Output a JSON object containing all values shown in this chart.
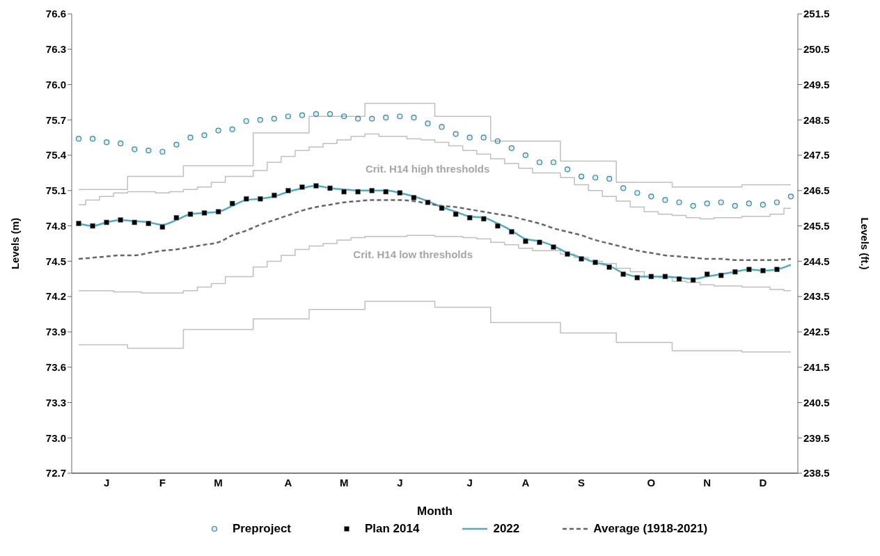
{
  "chart_data": {
    "type": "line",
    "xlabel": "Month",
    "ylabel": "Levels (m)",
    "y2label": "Levels (ft.)",
    "legend": "bottom",
    "categories": [
      null,
      null,
      "J",
      null,
      null,
      null,
      "F",
      null,
      null,
      null,
      "M",
      null,
      null,
      null,
      null,
      "A",
      null,
      null,
      null,
      "M",
      null,
      null,
      null,
      "J",
      null,
      null,
      null,
      null,
      "J",
      null,
      null,
      null,
      "A",
      null,
      null,
      null,
      "S",
      null,
      null,
      null,
      null,
      "O",
      null,
      null,
      null,
      "N",
      null,
      null,
      null,
      "D",
      null,
      null
    ],
    "ylim": [
      72.7,
      76.6
    ],
    "yticks": [
      72.7,
      {
        "value": 73,
        "label": "73.0"
      },
      73.3,
      73.6,
      73.9,
      74.2,
      74.5,
      74.8,
      75.1,
      75.4,
      75.7,
      {
        "value": 76,
        "label": "76.0"
      },
      76.3,
      76.6
    ],
    "y2lim": [
      238.5,
      251.5
    ],
    "y2ticks": [
      238.5,
      239.5,
      240.5,
      241.5,
      242.5,
      243.5,
      244.5,
      245.5,
      246.5,
      247.5,
      248.5,
      249.5,
      250.5,
      251.5
    ],
    "annotations": [
      "Crit. H14 high thresholds",
      "Crit. H14 low thresholds"
    ],
    "series": [
      {
        "type": "step",
        "color": "#bfbfbf",
        "values": [
          75.11,
          75.11,
          75.11,
          75.11,
          75.22,
          75.22,
          75.22,
          75.22,
          75.31,
          75.31,
          75.31,
          75.31,
          75.31,
          75.59,
          75.59,
          75.59,
          75.59,
          75.73,
          75.73,
          75.73,
          75.73,
          75.84,
          75.84,
          75.84,
          75.84,
          75.84,
          75.73,
          75.73,
          75.73,
          75.73,
          75.52,
          75.52,
          75.52,
          75.52,
          75.52,
          75.35,
          75.35,
          75.35,
          75.35,
          75.17,
          75.17,
          75.17,
          75.17,
          75.13,
          75.13,
          75.13,
          75.13,
          75.13,
          75.15,
          75.15,
          75.15,
          75.15
        ]
      },
      {
        "type": "step",
        "color": "#bfbfbf",
        "values": [
          74.98,
          75.02,
          75.05,
          75.08,
          75.09,
          75.09,
          75.08,
          75.09,
          75.11,
          75.13,
          75.17,
          75.22,
          75.22,
          75.27,
          75.34,
          75.39,
          75.44,
          75.47,
          75.5,
          75.53,
          75.56,
          75.58,
          75.56,
          75.56,
          75.54,
          75.53,
          75.51,
          75.48,
          75.44,
          75.41,
          75.37,
          75.33,
          75.29,
          75.25,
          75.25,
          75.21,
          75.15,
          75.1,
          75.05,
          75.01,
          74.96,
          74.92,
          74.9,
          74.89,
          74.87,
          74.86,
          74.87,
          74.87,
          74.88,
          74.88,
          74.9,
          74.95
        ]
      },
      {
        "type": "step",
        "color": "#bfbfbf",
        "values": [
          74.25,
          74.25,
          74.25,
          74.24,
          74.24,
          74.23,
          74.23,
          74.23,
          74.25,
          74.28,
          74.31,
          74.37,
          74.37,
          74.45,
          74.5,
          74.55,
          74.6,
          74.63,
          74.65,
          74.68,
          74.7,
          74.71,
          74.71,
          74.71,
          74.72,
          74.72,
          74.71,
          74.71,
          74.7,
          74.69,
          74.66,
          74.64,
          74.61,
          74.59,
          74.59,
          74.56,
          74.53,
          74.5,
          74.48,
          74.44,
          74.41,
          74.37,
          74.36,
          74.33,
          74.32,
          74.3,
          74.29,
          74.29,
          74.28,
          74.28,
          74.26,
          74.25
        ]
      },
      {
        "type": "step",
        "color": "#bfbfbf",
        "values": [
          73.79,
          73.79,
          73.79,
          73.79,
          73.76,
          73.76,
          73.76,
          73.76,
          73.92,
          73.92,
          73.92,
          73.92,
          73.92,
          74.01,
          74.01,
          74.01,
          74.01,
          74.09,
          74.09,
          74.09,
          74.09,
          74.16,
          74.16,
          74.16,
          74.16,
          74.16,
          74.11,
          74.11,
          74.11,
          74.11,
          73.98,
          73.98,
          73.98,
          73.98,
          73.98,
          73.89,
          73.89,
          73.89,
          73.89,
          73.81,
          73.81,
          73.81,
          73.81,
          73.74,
          73.74,
          73.74,
          73.74,
          73.74,
          73.73,
          73.73,
          73.73,
          73.73
        ]
      },
      {
        "name": "Preproject",
        "type": "scatter",
        "marker": "circle",
        "color": "#31859c",
        "values": [
          75.54,
          75.54,
          75.51,
          75.5,
          75.45,
          75.44,
          75.43,
          75.49,
          75.55,
          75.57,
          75.61,
          75.62,
          75.69,
          75.7,
          75.71,
          75.73,
          75.74,
          75.75,
          75.75,
          75.73,
          75.71,
          75.71,
          75.72,
          75.73,
          75.72,
          75.67,
          75.64,
          75.58,
          75.55,
          75.55,
          75.52,
          75.46,
          75.4,
          75.34,
          75.34,
          75.28,
          75.22,
          75.21,
          75.2,
          75.12,
          75.08,
          75.05,
          75.02,
          75.0,
          74.97,
          74.99,
          75.0,
          74.97,
          74.99,
          74.98,
          75.0,
          75.05
        ]
      },
      {
        "name": "Plan 2014",
        "type": "scatter",
        "marker": "square",
        "color": "#000000",
        "values": [
          74.82,
          74.8,
          74.83,
          74.85,
          74.83,
          74.82,
          74.79,
          74.87,
          74.9,
          74.91,
          74.92,
          74.99,
          75.03,
          75.03,
          75.06,
          75.1,
          75.13,
          75.14,
          75.12,
          75.09,
          75.09,
          75.1,
          75.09,
          75.08,
          75.04,
          75.0,
          74.95,
          74.9,
          74.87,
          74.86,
          74.8,
          74.75,
          74.67,
          74.66,
          74.62,
          74.56,
          74.52,
          74.49,
          74.45,
          74.39,
          74.36,
          74.37,
          74.37,
          74.35,
          74.34,
          74.39,
          74.38,
          74.41,
          74.43,
          74.42,
          74.43,
          null
        ]
      },
      {
        "name": "2022",
        "marker": "none",
        "line_style": "solid",
        "color": "#4bacc6",
        "values": [
          74.82,
          74.8,
          74.83,
          74.85,
          74.84,
          74.83,
          74.81,
          74.85,
          74.9,
          74.91,
          74.92,
          74.97,
          75.02,
          75.03,
          75.05,
          75.09,
          75.12,
          75.14,
          75.12,
          75.11,
          75.1,
          75.1,
          75.1,
          75.08,
          75.05,
          75.01,
          74.96,
          74.92,
          74.88,
          74.87,
          74.82,
          74.76,
          74.69,
          74.67,
          74.63,
          74.57,
          74.53,
          74.49,
          74.46,
          74.4,
          74.37,
          74.37,
          74.37,
          74.36,
          74.35,
          74.37,
          74.39,
          74.41,
          74.43,
          74.42,
          74.43,
          74.47
        ]
      },
      {
        "name": "Average (1918-2021)",
        "marker": "none",
        "line_style": "dashed",
        "color": "#666666",
        "values": [
          74.52,
          74.53,
          74.54,
          74.55,
          74.55,
          74.57,
          74.59,
          74.6,
          74.62,
          74.64,
          74.66,
          74.72,
          74.76,
          74.81,
          74.85,
          74.89,
          74.93,
          74.96,
          74.98,
          75.0,
          75.01,
          75.02,
          75.02,
          75.02,
          75.01,
          74.99,
          74.97,
          74.96,
          74.94,
          74.92,
          74.9,
          74.88,
          74.85,
          74.82,
          74.78,
          74.75,
          74.72,
          74.68,
          74.65,
          74.62,
          74.59,
          74.57,
          74.55,
          74.54,
          74.53,
          74.52,
          74.52,
          74.51,
          74.51,
          74.51,
          74.51,
          74.52
        ]
      }
    ]
  }
}
